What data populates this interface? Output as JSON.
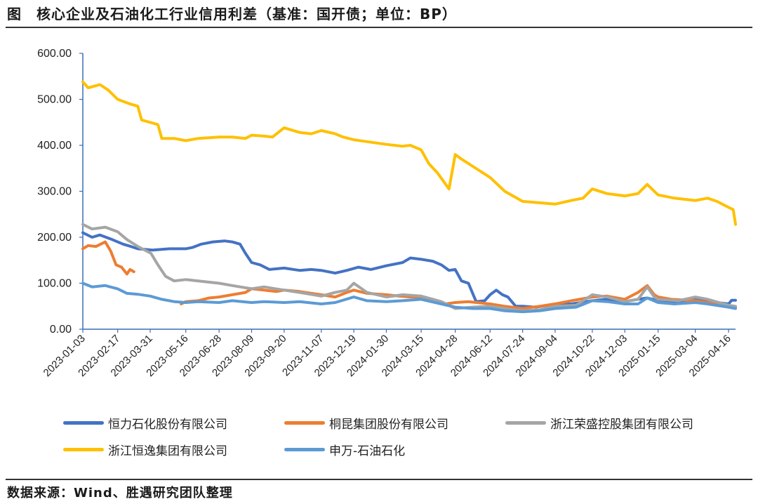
{
  "title": "图　核心企业及石油化工行业信用利差（基准：国开债；单位：BP）",
  "source": "数据来源：Wind、胜遇研究团队整理",
  "chart_data": {
    "type": "line",
    "title": "核心企业及石油化工行业信用利差（基准：国开债；单位：BP）",
    "xlabel": "",
    "ylabel": "",
    "ylim": [
      0,
      600
    ],
    "yticks": [
      "0.00",
      "100.00",
      "200.00",
      "300.00",
      "400.00",
      "500.00",
      "600.00"
    ],
    "x_start": "2023-01-03",
    "x_end": "2025-04-25",
    "xtick_labels": [
      "2023-01-03",
      "2023-02-17",
      "2023-03-31",
      "2023-05-16",
      "2023-06-28",
      "2023-08-09",
      "2023-09-20",
      "2023-11-07",
      "2023-12-19",
      "2024-01-30",
      "2024-03-15",
      "2024-04-28",
      "2024-06-12",
      "2024-07-24",
      "2024-09-04",
      "2024-10-22",
      "2024-12-03",
      "2025-01-15",
      "2025-03-04",
      "2025-04-16"
    ],
    "grid": false,
    "legend_position": "bottom",
    "series": [
      {
        "name": "恒力石化股份有限公司",
        "color": "#4472C4",
        "points": [
          [
            "2023-01-03",
            210
          ],
          [
            "2023-01-15",
            200
          ],
          [
            "2023-01-25",
            205
          ],
          [
            "2023-02-10",
            195
          ],
          [
            "2023-02-24",
            185
          ],
          [
            "2023-03-06",
            180
          ],
          [
            "2023-03-15",
            175
          ],
          [
            "2023-04-03",
            172
          ],
          [
            "2023-04-25",
            175
          ],
          [
            "2023-05-16",
            175
          ],
          [
            "2023-05-25",
            178
          ],
          [
            "2023-06-05",
            185
          ],
          [
            "2023-06-20",
            190
          ],
          [
            "2023-07-05",
            192
          ],
          [
            "2023-07-15",
            190
          ],
          [
            "2023-07-25",
            185
          ],
          [
            "2023-08-01",
            165
          ],
          [
            "2023-08-09",
            145
          ],
          [
            "2023-08-20",
            140
          ],
          [
            "2023-09-01",
            130
          ],
          [
            "2023-09-20",
            133
          ],
          [
            "2023-10-10",
            128
          ],
          [
            "2023-10-25",
            130
          ],
          [
            "2023-11-07",
            128
          ],
          [
            "2023-11-25",
            122
          ],
          [
            "2023-12-10",
            128
          ],
          [
            "2023-12-25",
            135
          ],
          [
            "2024-01-10",
            130
          ],
          [
            "2024-01-30",
            138
          ],
          [
            "2024-02-20",
            145
          ],
          [
            "2024-03-01",
            155
          ],
          [
            "2024-03-15",
            152
          ],
          [
            "2024-03-30",
            148
          ],
          [
            "2024-04-10",
            140
          ],
          [
            "2024-04-20",
            128
          ],
          [
            "2024-04-28",
            130
          ],
          [
            "2024-05-06",
            105
          ],
          [
            "2024-05-15",
            100
          ],
          [
            "2024-05-25",
            60
          ],
          [
            "2024-06-05",
            62
          ],
          [
            "2024-06-12",
            75
          ],
          [
            "2024-06-20",
            85
          ],
          [
            "2024-06-28",
            75
          ],
          [
            "2024-07-05",
            70
          ],
          [
            "2024-07-15",
            50
          ],
          [
            "2024-07-24",
            50
          ],
          [
            "2024-08-10",
            48
          ],
          [
            "2024-09-04",
            55
          ],
          [
            "2024-09-25",
            55
          ],
          [
            "2024-10-22",
            62
          ],
          [
            "2024-11-10",
            65
          ],
          [
            "2024-12-03",
            60
          ],
          [
            "2024-12-20",
            65
          ],
          [
            "2025-01-01",
            68
          ],
          [
            "2025-01-15",
            62
          ],
          [
            "2025-02-05",
            60
          ],
          [
            "2025-03-04",
            65
          ],
          [
            "2025-04-01",
            58
          ],
          [
            "2025-04-16",
            55
          ],
          [
            "2025-04-20",
            63
          ],
          [
            "2025-04-25",
            63
          ]
        ]
      },
      {
        "name": "桐昆集团股份有限公司",
        "color": "#ED7D31",
        "points": [
          [
            "2023-01-03",
            175
          ],
          [
            "2023-01-10",
            182
          ],
          [
            "2023-01-20",
            180
          ],
          [
            "2023-02-01",
            190
          ],
          [
            "2023-02-08",
            170
          ],
          [
            "2023-02-15",
            140
          ],
          [
            "2023-02-22",
            135
          ],
          [
            "2023-03-01",
            120
          ],
          [
            "2023-03-05",
            130
          ],
          [
            "2023-03-10",
            125
          ],
          [
            "2023-05-10",
            55
          ],
          [
            "2023-05-16",
            60
          ],
          [
            "2023-06-01",
            62
          ],
          [
            "2023-06-15",
            68
          ],
          [
            "2023-06-28",
            70
          ],
          [
            "2023-07-15",
            75
          ],
          [
            "2023-08-01",
            80
          ],
          [
            "2023-08-09",
            88
          ],
          [
            "2023-08-25",
            85
          ],
          [
            "2023-09-10",
            82
          ],
          [
            "2023-09-20",
            85
          ],
          [
            "2023-10-10",
            82
          ],
          [
            "2023-10-25",
            78
          ],
          [
            "2023-11-07",
            75
          ],
          [
            "2023-11-25",
            70
          ],
          [
            "2023-12-10",
            80
          ],
          [
            "2023-12-19",
            85
          ],
          [
            "2024-01-05",
            78
          ],
          [
            "2024-01-30",
            75
          ],
          [
            "2024-02-15",
            72
          ],
          [
            "2024-03-01",
            70
          ],
          [
            "2024-03-15",
            70
          ],
          [
            "2024-04-01",
            62
          ],
          [
            "2024-04-15",
            55
          ],
          [
            "2024-04-28",
            58
          ],
          [
            "2024-05-15",
            60
          ],
          [
            "2024-06-12",
            55
          ],
          [
            "2024-07-01",
            50
          ],
          [
            "2024-07-24",
            45
          ],
          [
            "2024-08-15",
            50
          ],
          [
            "2024-09-04",
            55
          ],
          [
            "2024-09-25",
            62
          ],
          [
            "2024-10-22",
            70
          ],
          [
            "2024-11-10",
            72
          ],
          [
            "2024-12-03",
            65
          ],
          [
            "2024-12-20",
            80
          ],
          [
            "2025-01-01",
            95
          ],
          [
            "2025-01-10",
            75
          ],
          [
            "2025-01-15",
            70
          ],
          [
            "2025-02-01",
            65
          ],
          [
            "2025-03-04",
            62
          ],
          [
            "2025-04-01",
            55
          ],
          [
            "2025-04-16",
            50
          ],
          [
            "2025-04-25",
            48
          ]
        ]
      },
      {
        "name": "浙江荣盛控股集团有限公司",
        "color": "#A5A5A5",
        "points": [
          [
            "2023-01-03",
            228
          ],
          [
            "2023-01-15",
            218
          ],
          [
            "2023-02-01",
            222
          ],
          [
            "2023-02-17",
            212
          ],
          [
            "2023-03-01",
            195
          ],
          [
            "2023-03-15",
            180
          ],
          [
            "2023-04-01",
            165
          ],
          [
            "2023-04-10",
            140
          ],
          [
            "2023-04-20",
            115
          ],
          [
            "2023-05-01",
            105
          ],
          [
            "2023-05-16",
            108
          ],
          [
            "2023-06-01",
            105
          ],
          [
            "2023-06-28",
            100
          ],
          [
            "2023-07-15",
            95
          ],
          [
            "2023-08-09",
            88
          ],
          [
            "2023-08-25",
            92
          ],
          [
            "2023-09-20",
            85
          ],
          [
            "2023-10-10",
            80
          ],
          [
            "2023-11-07",
            72
          ],
          [
            "2023-11-25",
            80
          ],
          [
            "2023-12-10",
            85
          ],
          [
            "2023-12-19",
            100
          ],
          [
            "2024-01-05",
            80
          ],
          [
            "2024-01-30",
            70
          ],
          [
            "2024-02-20",
            75
          ],
          [
            "2024-03-15",
            72
          ],
          [
            "2024-04-10",
            60
          ],
          [
            "2024-04-28",
            45
          ],
          [
            "2024-05-20",
            48
          ],
          [
            "2024-06-12",
            50
          ],
          [
            "2024-07-01",
            45
          ],
          [
            "2024-07-24",
            40
          ],
          [
            "2024-08-15",
            42
          ],
          [
            "2024-09-04",
            50
          ],
          [
            "2024-10-01",
            52
          ],
          [
            "2024-10-22",
            75
          ],
          [
            "2024-11-10",
            70
          ],
          [
            "2024-12-03",
            60
          ],
          [
            "2024-12-20",
            65
          ],
          [
            "2025-01-01",
            92
          ],
          [
            "2025-01-10",
            70
          ],
          [
            "2025-01-15",
            65
          ],
          [
            "2025-02-10",
            62
          ],
          [
            "2025-03-04",
            70
          ],
          [
            "2025-03-20",
            65
          ],
          [
            "2025-04-16",
            52
          ],
          [
            "2025-04-25",
            50
          ]
        ]
      },
      {
        "name": "浙江恒逸集团有限公司",
        "color": "#FFC000",
        "points": [
          [
            "2023-01-03",
            538
          ],
          [
            "2023-01-10",
            525
          ],
          [
            "2023-01-25",
            532
          ],
          [
            "2023-02-05",
            520
          ],
          [
            "2023-02-17",
            500
          ],
          [
            "2023-03-05",
            490
          ],
          [
            "2023-03-15",
            485
          ],
          [
            "2023-03-20",
            455
          ],
          [
            "2023-03-31",
            450
          ],
          [
            "2023-04-10",
            445
          ],
          [
            "2023-04-15",
            415
          ],
          [
            "2023-05-01",
            415
          ],
          [
            "2023-05-16",
            410
          ],
          [
            "2023-06-01",
            415
          ],
          [
            "2023-06-28",
            418
          ],
          [
            "2023-07-15",
            418
          ],
          [
            "2023-08-01",
            415
          ],
          [
            "2023-08-09",
            422
          ],
          [
            "2023-08-25",
            420
          ],
          [
            "2023-09-05",
            418
          ],
          [
            "2023-09-20",
            438
          ],
          [
            "2023-10-10",
            428
          ],
          [
            "2023-10-25",
            425
          ],
          [
            "2023-11-07",
            432
          ],
          [
            "2023-11-25",
            425
          ],
          [
            "2023-12-05",
            418
          ],
          [
            "2023-12-19",
            412
          ],
          [
            "2024-01-05",
            408
          ],
          [
            "2024-01-30",
            402
          ],
          [
            "2024-02-20",
            398
          ],
          [
            "2024-03-01",
            400
          ],
          [
            "2024-03-15",
            390
          ],
          [
            "2024-03-25",
            360
          ],
          [
            "2024-04-05",
            340
          ],
          [
            "2024-04-20",
            305
          ],
          [
            "2024-04-28",
            380
          ],
          [
            "2024-05-06",
            370
          ],
          [
            "2024-05-20",
            355
          ],
          [
            "2024-06-12",
            330
          ],
          [
            "2024-07-01",
            300
          ],
          [
            "2024-07-24",
            278
          ],
          [
            "2024-08-15",
            275
          ],
          [
            "2024-09-04",
            272
          ],
          [
            "2024-09-25",
            280
          ],
          [
            "2024-10-10",
            285
          ],
          [
            "2024-10-22",
            305
          ],
          [
            "2024-11-10",
            295
          ],
          [
            "2024-12-03",
            290
          ],
          [
            "2024-12-20",
            295
          ],
          [
            "2025-01-01",
            315
          ],
          [
            "2025-01-10",
            300
          ],
          [
            "2025-01-15",
            292
          ],
          [
            "2025-02-05",
            285
          ],
          [
            "2025-03-04",
            280
          ],
          [
            "2025-03-20",
            285
          ],
          [
            "2025-04-01",
            278
          ],
          [
            "2025-04-16",
            265
          ],
          [
            "2025-04-22",
            260
          ],
          [
            "2025-04-25",
            228
          ]
        ]
      },
      {
        "name": "申万-石油石化",
        "color": "#5B9BD5",
        "points": [
          [
            "2023-01-03",
            100
          ],
          [
            "2023-01-15",
            92
          ],
          [
            "2023-02-01",
            95
          ],
          [
            "2023-02-17",
            88
          ],
          [
            "2023-03-01",
            78
          ],
          [
            "2023-03-15",
            76
          ],
          [
            "2023-03-31",
            72
          ],
          [
            "2023-04-15",
            65
          ],
          [
            "2023-05-01",
            60
          ],
          [
            "2023-05-16",
            58
          ],
          [
            "2023-06-01",
            60
          ],
          [
            "2023-06-28",
            58
          ],
          [
            "2023-07-15",
            62
          ],
          [
            "2023-08-09",
            58
          ],
          [
            "2023-08-25",
            60
          ],
          [
            "2023-09-20",
            58
          ],
          [
            "2023-10-10",
            60
          ],
          [
            "2023-11-07",
            55
          ],
          [
            "2023-11-25",
            58
          ],
          [
            "2023-12-19",
            70
          ],
          [
            "2024-01-05",
            62
          ],
          [
            "2024-01-30",
            60
          ],
          [
            "2024-02-20",
            62
          ],
          [
            "2024-03-15",
            65
          ],
          [
            "2024-04-10",
            55
          ],
          [
            "2024-04-28",
            48
          ],
          [
            "2024-05-20",
            45
          ],
          [
            "2024-06-12",
            45
          ],
          [
            "2024-07-01",
            40
          ],
          [
            "2024-07-24",
            38
          ],
          [
            "2024-08-15",
            40
          ],
          [
            "2024-09-04",
            45
          ],
          [
            "2024-10-01",
            48
          ],
          [
            "2024-10-22",
            62
          ],
          [
            "2024-11-10",
            60
          ],
          [
            "2024-12-03",
            55
          ],
          [
            "2024-12-20",
            55
          ],
          [
            "2025-01-01",
            68
          ],
          [
            "2025-01-15",
            58
          ],
          [
            "2025-02-05",
            55
          ],
          [
            "2025-03-04",
            58
          ],
          [
            "2025-03-20",
            55
          ],
          [
            "2025-04-16",
            48
          ],
          [
            "2025-04-25",
            45
          ]
        ]
      }
    ]
  }
}
